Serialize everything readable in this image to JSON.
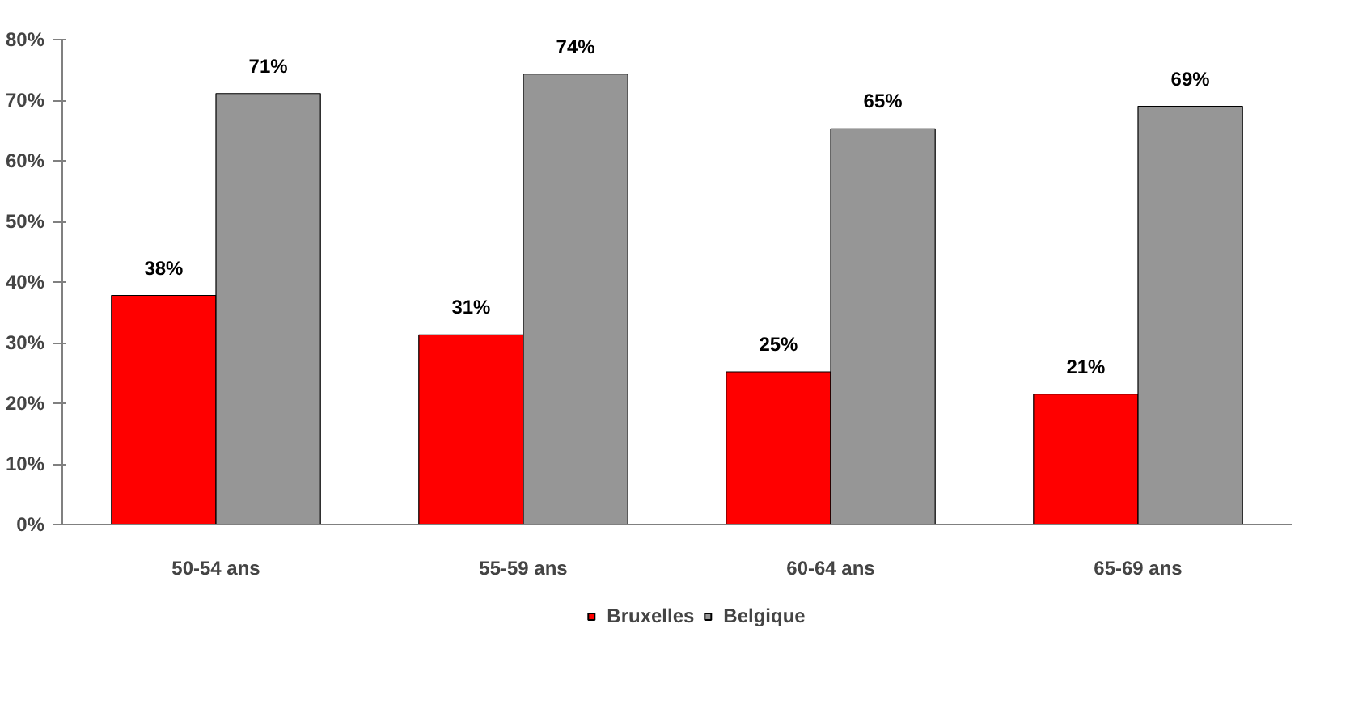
{
  "chart_data": {
    "type": "bar",
    "categories": [
      "50-54 ans",
      "55-59 ans",
      "60-64 ans",
      "65-69 ans"
    ],
    "series": [
      {
        "name": "Bruxelles",
        "color": "#ff0000",
        "values": [
          37.8,
          31.3,
          25.2,
          21.5
        ],
        "value_labels": [
          "38%",
          "31%",
          "25%",
          "21%"
        ]
      },
      {
        "name": "Belgique",
        "color": "#969696",
        "values": [
          71.1,
          74.3,
          65.3,
          69.0
        ],
        "value_labels": [
          "71%",
          "74%",
          "65%",
          "69%"
        ]
      }
    ],
    "ylim": [
      0,
      80
    ],
    "yticks": [
      {
        "value": 0,
        "label": "0%"
      },
      {
        "value": 10,
        "label": "10%"
      },
      {
        "value": 20,
        "label": "20%"
      },
      {
        "value": 30,
        "label": "30%"
      },
      {
        "value": 40,
        "label": "40%"
      },
      {
        "value": 50,
        "label": "50%"
      },
      {
        "value": 60,
        "label": "60%"
      },
      {
        "value": 70,
        "label": "70%"
      },
      {
        "value": 80,
        "label": "80%"
      }
    ],
    "grid": false,
    "legend": "bottom"
  }
}
